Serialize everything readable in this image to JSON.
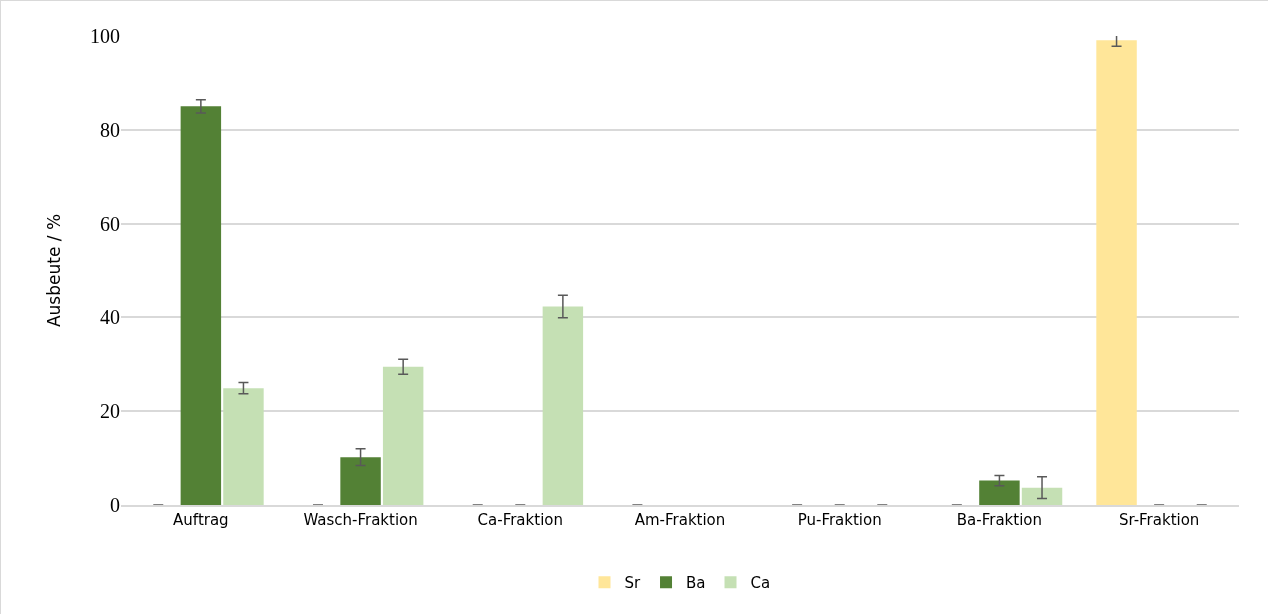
{
  "chart_data": {
    "type": "bar",
    "ylabel": "Ausbeute / %",
    "categories": [
      "Auftrag",
      "Wasch-Fraktion",
      "Ca-Fraktion",
      "Am-Fraktion",
      "Pu-Fraktion",
      "Ba-Fraktion",
      "Sr-Fraktion"
    ],
    "series": [
      {
        "name": "Sr",
        "color": "#ffe699",
        "values": [
          0,
          0,
          0,
          0,
          0,
          0,
          99.1
        ],
        "errors": [
          0,
          0,
          0,
          0,
          0,
          0,
          1.3
        ]
      },
      {
        "name": "Ba",
        "color": "#538135",
        "values": [
          85,
          10.2,
          0,
          null,
          0,
          5.2,
          0
        ],
        "errors": [
          1.4,
          1.8,
          0,
          null,
          0,
          1.1,
          0
        ]
      },
      {
        "name": "Ca",
        "color": "#c5e0b4",
        "values": [
          24.9,
          29.5,
          42.3,
          null,
          0,
          3.7,
          0
        ],
        "errors": [
          1.2,
          1.6,
          2.4,
          null,
          0,
          2.3,
          0
        ]
      }
    ],
    "ylim": [
      0,
      100
    ],
    "yticks": [
      0,
      20,
      40,
      60,
      80,
      100
    ],
    "grid": "y",
    "legend": "bottom"
  }
}
